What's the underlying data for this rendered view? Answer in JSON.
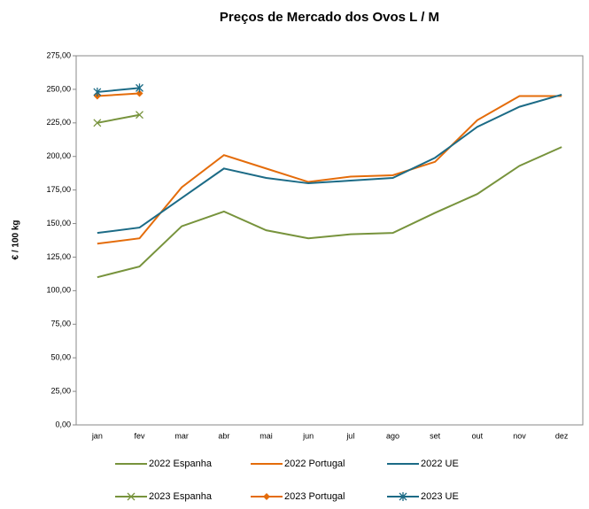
{
  "chart_data": {
    "type": "line",
    "title": "Preços de Mercado dos Ovos L / M",
    "y_label": "€ / 100 kg",
    "categories": [
      "jan",
      "fev",
      "mar",
      "abr",
      "mai",
      "jun",
      "jul",
      "ago",
      "set",
      "out",
      "nov",
      "dez"
    ],
    "ylim": [
      0,
      275
    ],
    "yticks": [
      {
        "value": 0,
        "label": "0,00"
      },
      {
        "value": 25,
        "label": "25,00"
      },
      {
        "value": 50,
        "label": "50,00"
      },
      {
        "value": 75,
        "label": "75,00"
      },
      {
        "value": 100,
        "label": "100,00"
      },
      {
        "value": 125,
        "label": "125,00"
      },
      {
        "value": 150,
        "label": "150,00"
      },
      {
        "value": 175,
        "label": "175,00"
      },
      {
        "value": 200,
        "label": "200,00"
      },
      {
        "value": 225,
        "label": "225,00"
      },
      {
        "value": 250,
        "label": "250,00"
      },
      {
        "value": 275,
        "label": "275,00"
      }
    ],
    "series": [
      {
        "name": "2022 Espanha",
        "color": "#77933c",
        "marker": "none",
        "values": [
          110,
          118,
          148,
          159,
          145,
          139,
          142,
          143,
          158,
          172,
          193,
          207
        ]
      },
      {
        "name": "2022 Portugal",
        "color": "#e46c0a",
        "marker": "none",
        "values": [
          135,
          139,
          177,
          201,
          191,
          181,
          185,
          186,
          196,
          227,
          245,
          245
        ]
      },
      {
        "name": "2022 UE",
        "color": "#1c6b86",
        "marker": "none",
        "values": [
          143,
          147,
          169,
          191,
          184,
          180,
          182,
          184,
          199,
          222,
          237,
          246
        ]
      },
      {
        "name": "2023 Espanha",
        "color": "#77933c",
        "marker": "x",
        "values": [
          225,
          231,
          null,
          null,
          null,
          null,
          null,
          null,
          null,
          null,
          null,
          null
        ]
      },
      {
        "name": "2023 Portugal",
        "color": "#e46c0a",
        "marker": "diamond",
        "values": [
          245,
          247,
          null,
          null,
          null,
          null,
          null,
          null,
          null,
          null,
          null,
          null
        ]
      },
      {
        "name": "2023 UE",
        "color": "#1c6b86",
        "marker": "asterisk",
        "values": [
          248,
          251,
          null,
          null,
          null,
          null,
          null,
          null,
          null,
          null,
          null,
          null
        ]
      }
    ]
  }
}
